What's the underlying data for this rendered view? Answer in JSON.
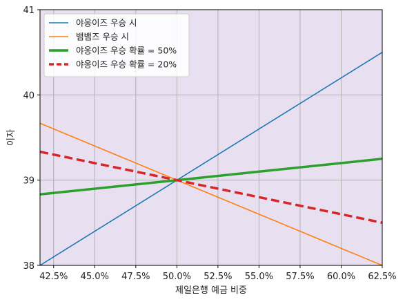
{
  "chart_data": {
    "type": "line",
    "title": "",
    "xlabel": "제일은행 예금 비중",
    "ylabel": "이자",
    "xlim": [
      0.4167,
      0.625
    ],
    "ylim": [
      38,
      41
    ],
    "x_ticks": [
      0.425,
      0.45,
      0.475,
      0.5,
      0.525,
      0.55,
      0.575,
      0.6,
      0.625
    ],
    "x_tick_labels": [
      "42.5%",
      "45.0%",
      "47.5%",
      "50.0%",
      "52.5%",
      "55.0%",
      "57.5%",
      "60.0%",
      "62.5%"
    ],
    "y_ticks": [
      38,
      39,
      40,
      41
    ],
    "y_tick_labels": [
      "38",
      "39",
      "40",
      "41"
    ],
    "grid": true,
    "background": "#e8e0f0",
    "grid_color": "#b0b0b0",
    "legend_position": "top-left",
    "series": [
      {
        "name": "야옹이즈 우승 시",
        "color": "#1f77b4",
        "style": "solid",
        "width": "thin",
        "x": [
          0.4167,
          0.625
        ],
        "y": [
          38.0,
          40.5
        ]
      },
      {
        "name": "뱀뱀즈 우승 시",
        "color": "#ff7f0e",
        "style": "solid",
        "width": "thin",
        "x": [
          0.4167,
          0.625
        ],
        "y": [
          39.667,
          38.0
        ]
      },
      {
        "name": "야옹이즈 우승 확률 = 50%",
        "color": "#2ca02c",
        "style": "solid",
        "width": "thick",
        "x": [
          0.4167,
          0.625
        ],
        "y": [
          38.833,
          39.25
        ]
      },
      {
        "name": "야옹이즈 우승 확률 = 20%",
        "color": "#d62728",
        "style": "dashed",
        "width": "thick",
        "x": [
          0.4167,
          0.625
        ],
        "y": [
          39.333,
          38.5
        ]
      }
    ]
  }
}
